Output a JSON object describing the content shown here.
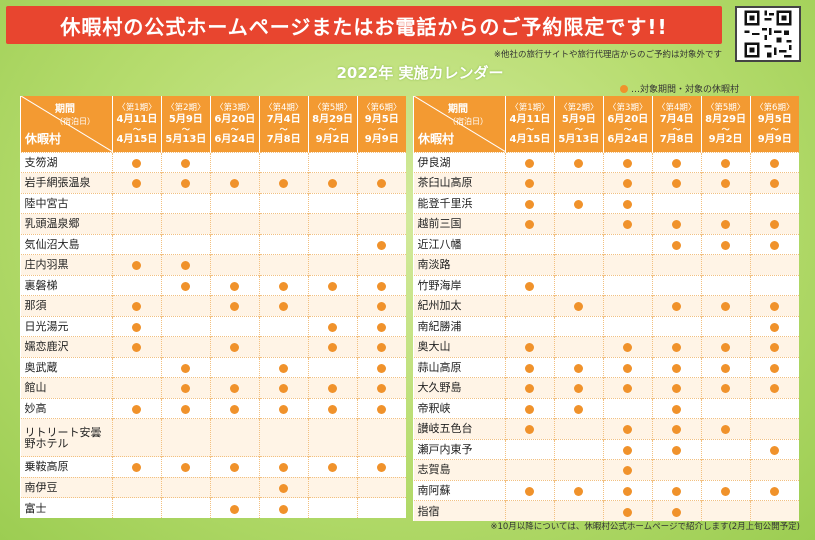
{
  "header": {
    "banner": "休暇村の公式ホームページまたはお電話からのご予約限定です!!",
    "note": "※他社の旅行サイトや旅行代理店からのご予約は対象外です",
    "calendar_title": "2022年 実施カレンダー",
    "legend": "…対象期間・対象の休暇村"
  },
  "corner": {
    "period": "期間",
    "stay": "（宿泊日）",
    "village": "休暇村"
  },
  "periods": [
    {
      "label": "〈第1期〉",
      "start": "4月11日",
      "end": "4月15日"
    },
    {
      "label": "〈第2期〉",
      "start": "5月9日",
      "end": "5月13日"
    },
    {
      "label": "〈第3期〉",
      "start": "6月20日",
      "end": "6月24日"
    },
    {
      "label": "〈第4期〉",
      "start": "7月4日",
      "end": "7月8日"
    },
    {
      "label": "〈第5期〉",
      "start": "8月29日",
      "end": "9月2日"
    },
    {
      "label": "〈第6期〉",
      "start": "9月5日",
      "end": "9月9日"
    }
  ],
  "tilde": "〜",
  "left_rows": [
    {
      "name": "支笏湖",
      "marks": [
        1,
        1,
        0,
        0,
        0,
        0
      ]
    },
    {
      "name": "岩手網張温泉",
      "marks": [
        1,
        1,
        1,
        1,
        1,
        1
      ]
    },
    {
      "name": "陸中宮古",
      "marks": [
        0,
        0,
        0,
        0,
        0,
        0
      ]
    },
    {
      "name": "乳頭温泉郷",
      "marks": [
        0,
        0,
        0,
        0,
        0,
        0
      ]
    },
    {
      "name": "気仙沼大島",
      "marks": [
        0,
        0,
        0,
        0,
        0,
        1
      ]
    },
    {
      "name": "庄内羽黒",
      "marks": [
        1,
        1,
        0,
        0,
        0,
        0
      ]
    },
    {
      "name": "裏磐梯",
      "marks": [
        0,
        1,
        1,
        1,
        1,
        1
      ]
    },
    {
      "name": "那須",
      "marks": [
        1,
        0,
        1,
        1,
        0,
        1
      ]
    },
    {
      "name": "日光湯元",
      "marks": [
        1,
        0,
        0,
        0,
        1,
        1
      ]
    },
    {
      "name": "嬬恋鹿沢",
      "marks": [
        1,
        0,
        1,
        0,
        1,
        1
      ]
    },
    {
      "name": "奥武蔵",
      "marks": [
        0,
        1,
        0,
        1,
        0,
        1
      ]
    },
    {
      "name": "館山",
      "marks": [
        0,
        1,
        1,
        1,
        1,
        1
      ]
    },
    {
      "name": "妙高",
      "marks": [
        1,
        1,
        1,
        1,
        1,
        1
      ]
    },
    {
      "name": "リトリート安曇野ホテル",
      "marks": [
        0,
        0,
        0,
        0,
        0,
        0
      ],
      "tall": true
    },
    {
      "name": "乗鞍高原",
      "marks": [
        1,
        1,
        1,
        1,
        1,
        1
      ]
    },
    {
      "name": "南伊豆",
      "marks": [
        0,
        0,
        0,
        1,
        0,
        0
      ]
    },
    {
      "name": "富士",
      "marks": [
        0,
        0,
        1,
        1,
        0,
        0
      ]
    }
  ],
  "right_rows": [
    {
      "name": "伊良湖",
      "marks": [
        1,
        1,
        1,
        1,
        1,
        1
      ]
    },
    {
      "name": "茶臼山高原",
      "marks": [
        1,
        0,
        1,
        1,
        1,
        1
      ]
    },
    {
      "name": "能登千里浜",
      "marks": [
        1,
        1,
        1,
        0,
        0,
        0
      ]
    },
    {
      "name": "越前三国",
      "marks": [
        1,
        0,
        1,
        1,
        1,
        1
      ]
    },
    {
      "name": "近江八幡",
      "marks": [
        0,
        0,
        0,
        1,
        1,
        1
      ]
    },
    {
      "name": "南淡路",
      "marks": [
        0,
        0,
        0,
        0,
        0,
        0
      ]
    },
    {
      "name": "竹野海岸",
      "marks": [
        1,
        0,
        0,
        0,
        0,
        0
      ]
    },
    {
      "name": "紀州加太",
      "marks": [
        0,
        1,
        0,
        1,
        1,
        1
      ]
    },
    {
      "name": "南紀勝浦",
      "marks": [
        0,
        0,
        0,
        0,
        0,
        1
      ]
    },
    {
      "name": "奥大山",
      "marks": [
        1,
        0,
        1,
        1,
        1,
        1
      ]
    },
    {
      "name": "蒜山高原",
      "marks": [
        1,
        1,
        1,
        1,
        1,
        1
      ]
    },
    {
      "name": "大久野島",
      "marks": [
        1,
        1,
        1,
        1,
        1,
        1
      ]
    },
    {
      "name": "帝釈峡",
      "marks": [
        1,
        1,
        0,
        1,
        0,
        0
      ]
    },
    {
      "name": "讃岐五色台",
      "marks": [
        1,
        0,
        1,
        1,
        1,
        0
      ]
    },
    {
      "name": "瀬戸内東予",
      "marks": [
        0,
        0,
        1,
        1,
        0,
        1
      ]
    },
    {
      "name": "志賀島",
      "marks": [
        0,
        0,
        1,
        0,
        0,
        0
      ]
    },
    {
      "name": "南阿蘇",
      "marks": [
        1,
        1,
        1,
        1,
        1,
        1
      ]
    },
    {
      "name": "指宿",
      "marks": [
        0,
        0,
        1,
        1,
        0,
        0
      ]
    }
  ],
  "footer_note": "※10月以降については、休暇村公式ホームページで紹介します(2月上旬公開予定)",
  "colors": {
    "banner": "#e8452f",
    "header": "#f39a32",
    "dot": "#f0922b",
    "background": "#b6dc6e"
  },
  "icons": {
    "qr": "qr-code-icon",
    "dot": "circle-dot-icon"
  }
}
